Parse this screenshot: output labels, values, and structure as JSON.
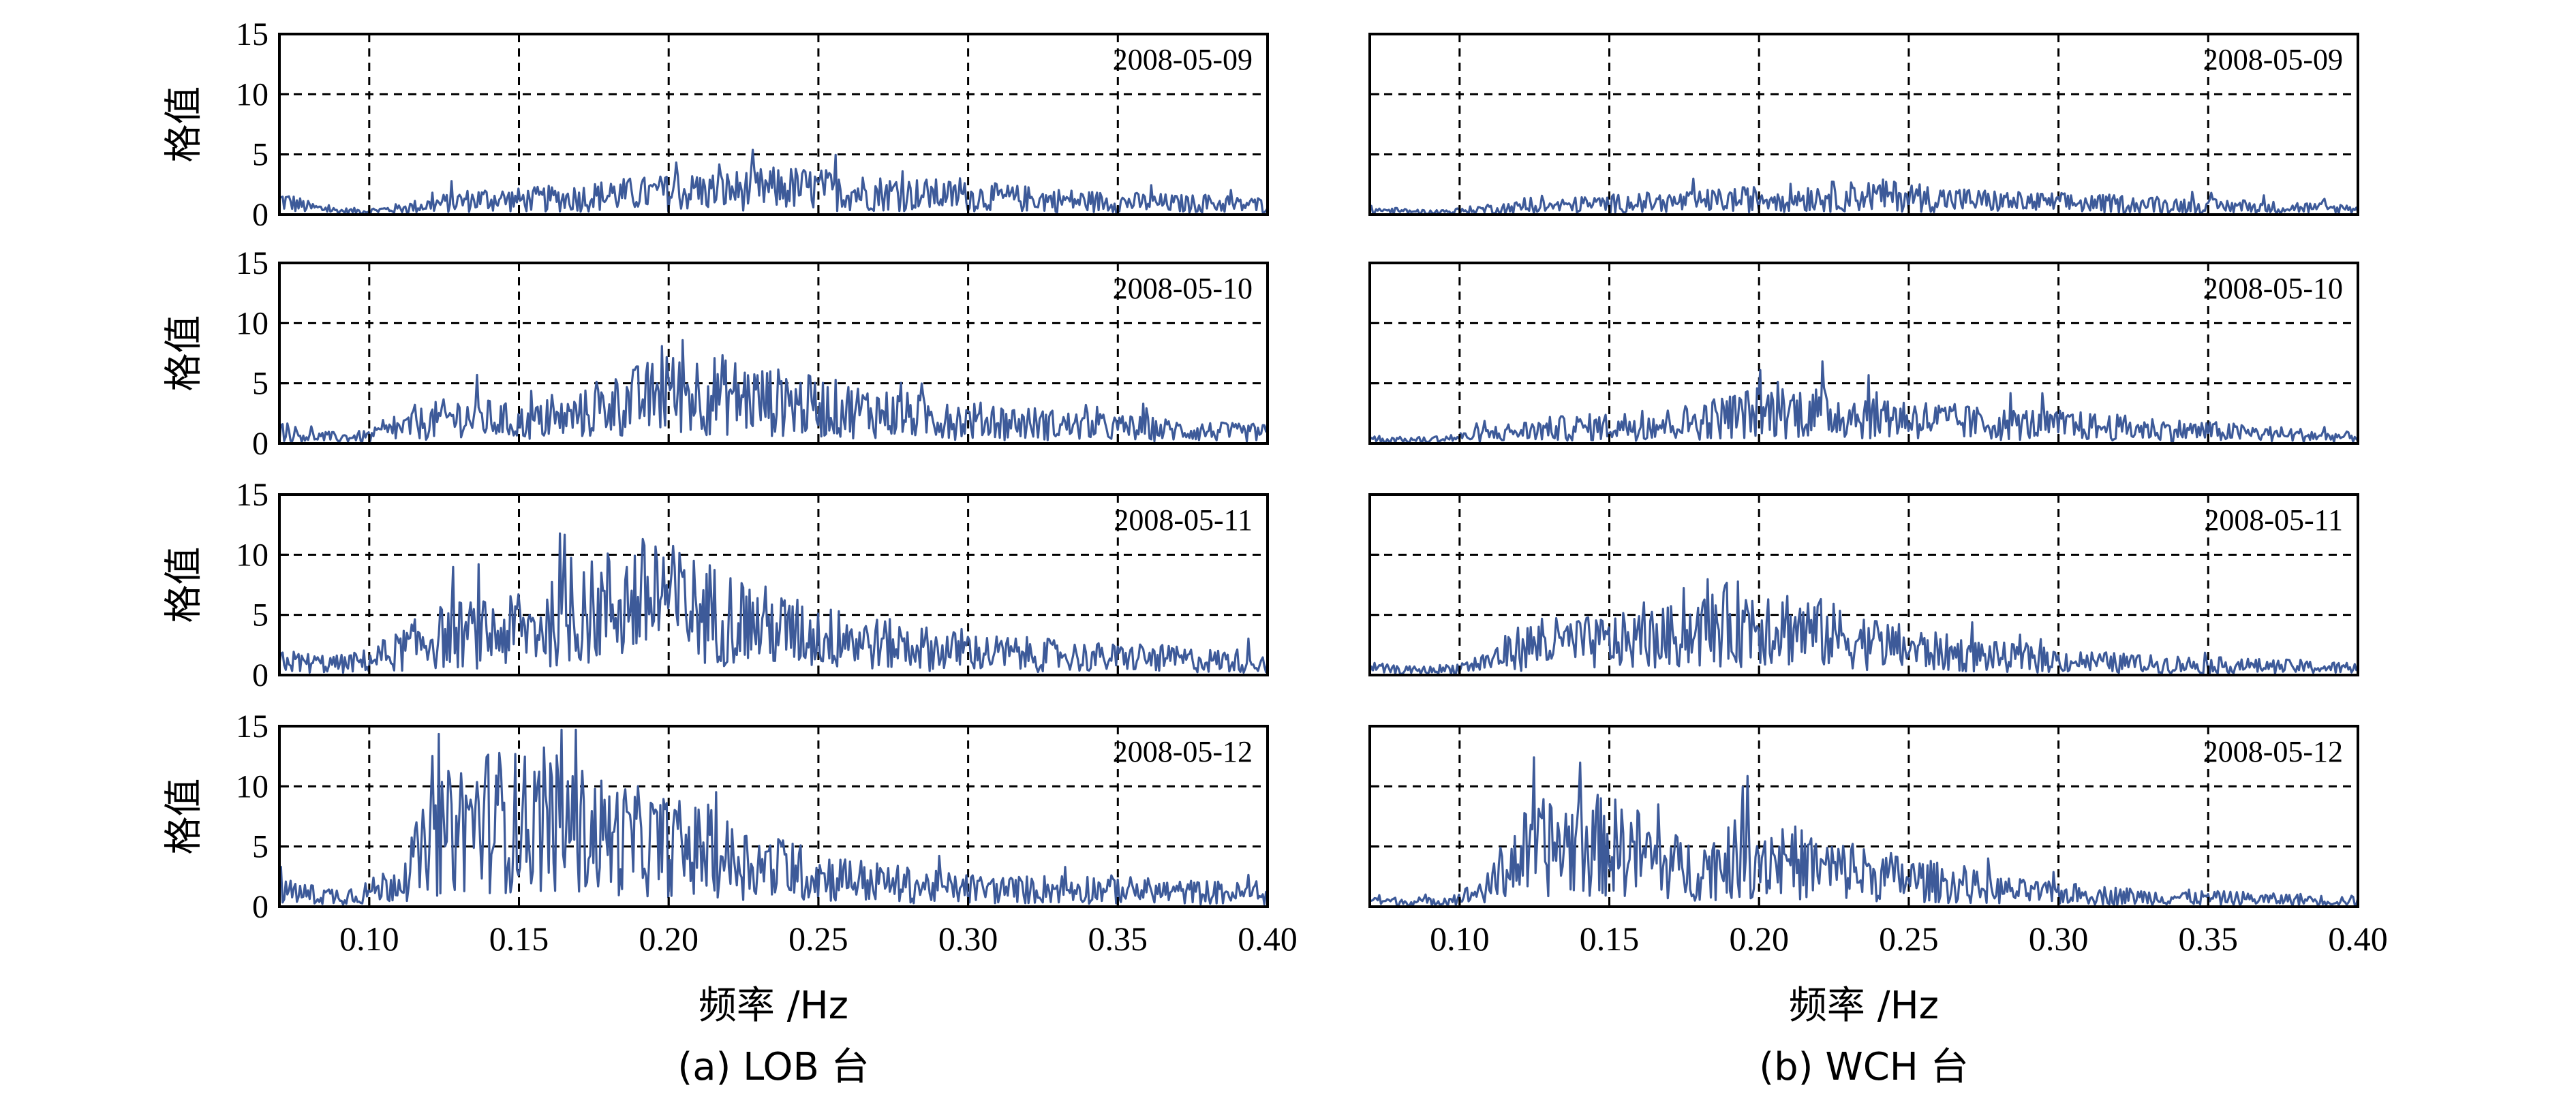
{
  "chart_data": [
    {
      "type": "line",
      "panel": "a",
      "station": "LOB",
      "caption": "(a) LOB 台",
      "xlabel": "频率 /Hz",
      "ylabel": "格值",
      "xlim": [
        0.07,
        0.4
      ],
      "ylim": [
        0,
        15
      ],
      "xticks": [
        "0.10",
        "0.15",
        "0.20",
        "0.25",
        "0.30",
        "0.35",
        "0.40"
      ],
      "yticks": [
        "0",
        "5",
        "10",
        "15"
      ],
      "grid": true,
      "line_color": "#3d5a99",
      "subplots": [
        {
          "date": "2008-05-09",
          "x": [
            0.07,
            0.08,
            0.09,
            0.1,
            0.11,
            0.12,
            0.13,
            0.14,
            0.15,
            0.16,
            0.17,
            0.18,
            0.19,
            0.2,
            0.21,
            0.22,
            0.23,
            0.24,
            0.25,
            0.26,
            0.27,
            0.28,
            0.29,
            0.3,
            0.31,
            0.32,
            0.33,
            0.34,
            0.35,
            0.36,
            0.37,
            0.38,
            0.39,
            0.4
          ],
          "y": [
            1.2,
            0.6,
            0.3,
            0.3,
            0.5,
            0.8,
            1.1,
            1.3,
            1.2,
            1.3,
            1.4,
            1.6,
            1.7,
            1.8,
            1.9,
            2.0,
            2.1,
            2.2,
            2.1,
            1.9,
            1.8,
            1.7,
            1.6,
            1.5,
            1.4,
            1.3,
            1.2,
            1.1,
            1.0,
            1.0,
            0.9,
            0.9,
            0.8,
            0.8
          ]
        },
        {
          "date": "2008-05-10",
          "x": [
            0.07,
            0.08,
            0.09,
            0.1,
            0.11,
            0.12,
            0.13,
            0.14,
            0.15,
            0.16,
            0.17,
            0.18,
            0.19,
            0.2,
            0.21,
            0.22,
            0.23,
            0.24,
            0.25,
            0.26,
            0.27,
            0.28,
            0.29,
            0.3,
            0.31,
            0.32,
            0.33,
            0.34,
            0.35,
            0.36,
            0.37,
            0.38,
            0.39,
            0.4
          ],
          "y": [
            1.0,
            0.6,
            0.5,
            0.6,
            1.2,
            1.8,
            2.2,
            2.0,
            1.7,
            1.8,
            2.3,
            3.0,
            3.6,
            4.0,
            4.2,
            4.0,
            3.6,
            3.3,
            3.0,
            2.8,
            2.6,
            2.3,
            2.1,
            1.9,
            1.8,
            1.7,
            1.5,
            1.4,
            1.3,
            1.2,
            1.1,
            1.0,
            0.9,
            0.9
          ]
        },
        {
          "date": "2008-05-11",
          "x": [
            0.07,
            0.08,
            0.09,
            0.1,
            0.11,
            0.12,
            0.13,
            0.14,
            0.15,
            0.16,
            0.17,
            0.18,
            0.19,
            0.2,
            0.21,
            0.22,
            0.23,
            0.24,
            0.25,
            0.26,
            0.27,
            0.28,
            0.29,
            0.3,
            0.31,
            0.32,
            0.33,
            0.34,
            0.35,
            0.36,
            0.37,
            0.38,
            0.39,
            0.4
          ],
          "y": [
            1.2,
            1.0,
            0.9,
            1.2,
            2.0,
            3.0,
            3.4,
            3.4,
            3.6,
            4.2,
            4.8,
            5.8,
            6.3,
            6.0,
            5.4,
            4.8,
            4.2,
            3.6,
            3.2,
            2.9,
            2.6,
            2.4,
            2.1,
            1.9,
            1.8,
            1.7,
            1.6,
            1.5,
            1.4,
            1.4,
            1.3,
            1.2,
            1.2,
            1.1
          ]
        },
        {
          "date": "2008-05-12",
          "x": [
            0.07,
            0.08,
            0.09,
            0.1,
            0.11,
            0.12,
            0.13,
            0.14,
            0.15,
            0.16,
            0.17,
            0.18,
            0.19,
            0.2,
            0.21,
            0.22,
            0.23,
            0.24,
            0.25,
            0.26,
            0.27,
            0.28,
            0.29,
            0.3,
            0.31,
            0.32,
            0.33,
            0.34,
            0.35,
            0.36,
            0.37,
            0.38,
            0.39,
            0.4
          ],
          "y": [
            1.3,
            1.0,
            0.9,
            1.2,
            2.2,
            5.0,
            6.8,
            7.3,
            7.0,
            7.0,
            6.4,
            5.8,
            5.4,
            5.0,
            4.6,
            4.0,
            3.5,
            3.0,
            2.6,
            2.3,
            2.0,
            1.8,
            1.6,
            1.5,
            1.4,
            1.4,
            1.5,
            1.5,
            1.4,
            1.3,
            1.2,
            1.2,
            1.1,
            1.1
          ]
        }
      ]
    },
    {
      "type": "line",
      "panel": "b",
      "station": "WCH",
      "caption": "(b) WCH 台",
      "xlabel": "频率 /Hz",
      "ylabel": "",
      "xlim": [
        0.07,
        0.4
      ],
      "ylim": [
        0,
        15
      ],
      "xticks": [
        "0.10",
        "0.15",
        "0.20",
        "0.25",
        "0.30",
        "0.35",
        "0.40"
      ],
      "yticks": [],
      "grid": true,
      "line_color": "#3d5a99",
      "subplots": [
        {
          "date": "2008-05-09",
          "x": [
            0.07,
            0.08,
            0.09,
            0.1,
            0.11,
            0.12,
            0.13,
            0.14,
            0.15,
            0.16,
            0.17,
            0.18,
            0.19,
            0.2,
            0.21,
            0.22,
            0.23,
            0.24,
            0.25,
            0.26,
            0.27,
            0.28,
            0.29,
            0.3,
            0.31,
            0.32,
            0.33,
            0.34,
            0.35,
            0.36,
            0.37,
            0.38,
            0.39,
            0.4
          ],
          "y": [
            0.4,
            0.3,
            0.2,
            0.3,
            0.5,
            0.6,
            0.7,
            0.8,
            0.9,
            1.0,
            1.0,
            1.1,
            1.2,
            1.3,
            1.4,
            1.5,
            1.5,
            1.6,
            1.5,
            1.3,
            1.2,
            1.1,
            1.0,
            1.0,
            0.9,
            0.9,
            0.8,
            0.8,
            0.7,
            0.7,
            0.6,
            0.6,
            0.5,
            0.5
          ]
        },
        {
          "date": "2008-05-10",
          "x": [
            0.07,
            0.08,
            0.09,
            0.1,
            0.11,
            0.12,
            0.13,
            0.14,
            0.15,
            0.16,
            0.17,
            0.18,
            0.19,
            0.2,
            0.21,
            0.22,
            0.23,
            0.24,
            0.25,
            0.26,
            0.27,
            0.28,
            0.29,
            0.3,
            0.31,
            0.32,
            0.33,
            0.34,
            0.35,
            0.36,
            0.37,
            0.38,
            0.39,
            0.4
          ],
          "y": [
            0.4,
            0.3,
            0.3,
            0.5,
            0.8,
            1.0,
            1.2,
            1.3,
            1.4,
            1.5,
            1.6,
            1.9,
            2.3,
            2.6,
            2.7,
            2.6,
            2.4,
            2.3,
            2.1,
            1.9,
            1.7,
            1.6,
            1.6,
            1.5,
            1.4,
            1.3,
            1.2,
            1.1,
            1.0,
            0.9,
            0.8,
            0.7,
            0.6,
            0.5
          ]
        },
        {
          "date": "2008-05-11",
          "x": [
            0.07,
            0.08,
            0.09,
            0.1,
            0.11,
            0.12,
            0.13,
            0.14,
            0.15,
            0.16,
            0.17,
            0.18,
            0.19,
            0.2,
            0.21,
            0.22,
            0.23,
            0.24,
            0.25,
            0.26,
            0.27,
            0.28,
            0.29,
            0.3,
            0.31,
            0.32,
            0.33,
            0.34,
            0.35,
            0.36,
            0.37,
            0.38,
            0.39,
            0.4
          ],
          "y": [
            0.6,
            0.4,
            0.4,
            0.6,
            1.2,
            2.3,
            2.6,
            2.6,
            2.7,
            2.9,
            3.1,
            3.6,
            4.2,
            4.5,
            4.0,
            3.5,
            3.0,
            2.6,
            2.2,
            1.9,
            1.7,
            1.5,
            1.3,
            1.2,
            1.1,
            1.0,
            0.9,
            0.9,
            0.8,
            0.8,
            0.7,
            0.7,
            0.6,
            0.6
          ]
        },
        {
          "date": "2008-05-12",
          "x": [
            0.07,
            0.08,
            0.09,
            0.1,
            0.11,
            0.12,
            0.13,
            0.14,
            0.15,
            0.16,
            0.17,
            0.18,
            0.19,
            0.2,
            0.21,
            0.22,
            0.23,
            0.24,
            0.25,
            0.26,
            0.27,
            0.28,
            0.29,
            0.3,
            0.31,
            0.32,
            0.33,
            0.34,
            0.35,
            0.36,
            0.37,
            0.38,
            0.39,
            0.4
          ],
          "y": [
            0.6,
            0.4,
            0.4,
            0.7,
            1.6,
            4.2,
            5.0,
            5.2,
            5.0,
            4.5,
            3.4,
            3.0,
            3.8,
            4.3,
            3.8,
            3.2,
            2.9,
            2.6,
            2.3,
            2.0,
            1.7,
            1.4,
            1.2,
            1.1,
            1.0,
            0.9,
            0.8,
            0.8,
            0.7,
            0.7,
            0.6,
            0.6,
            0.5,
            0.5
          ]
        }
      ]
    }
  ]
}
